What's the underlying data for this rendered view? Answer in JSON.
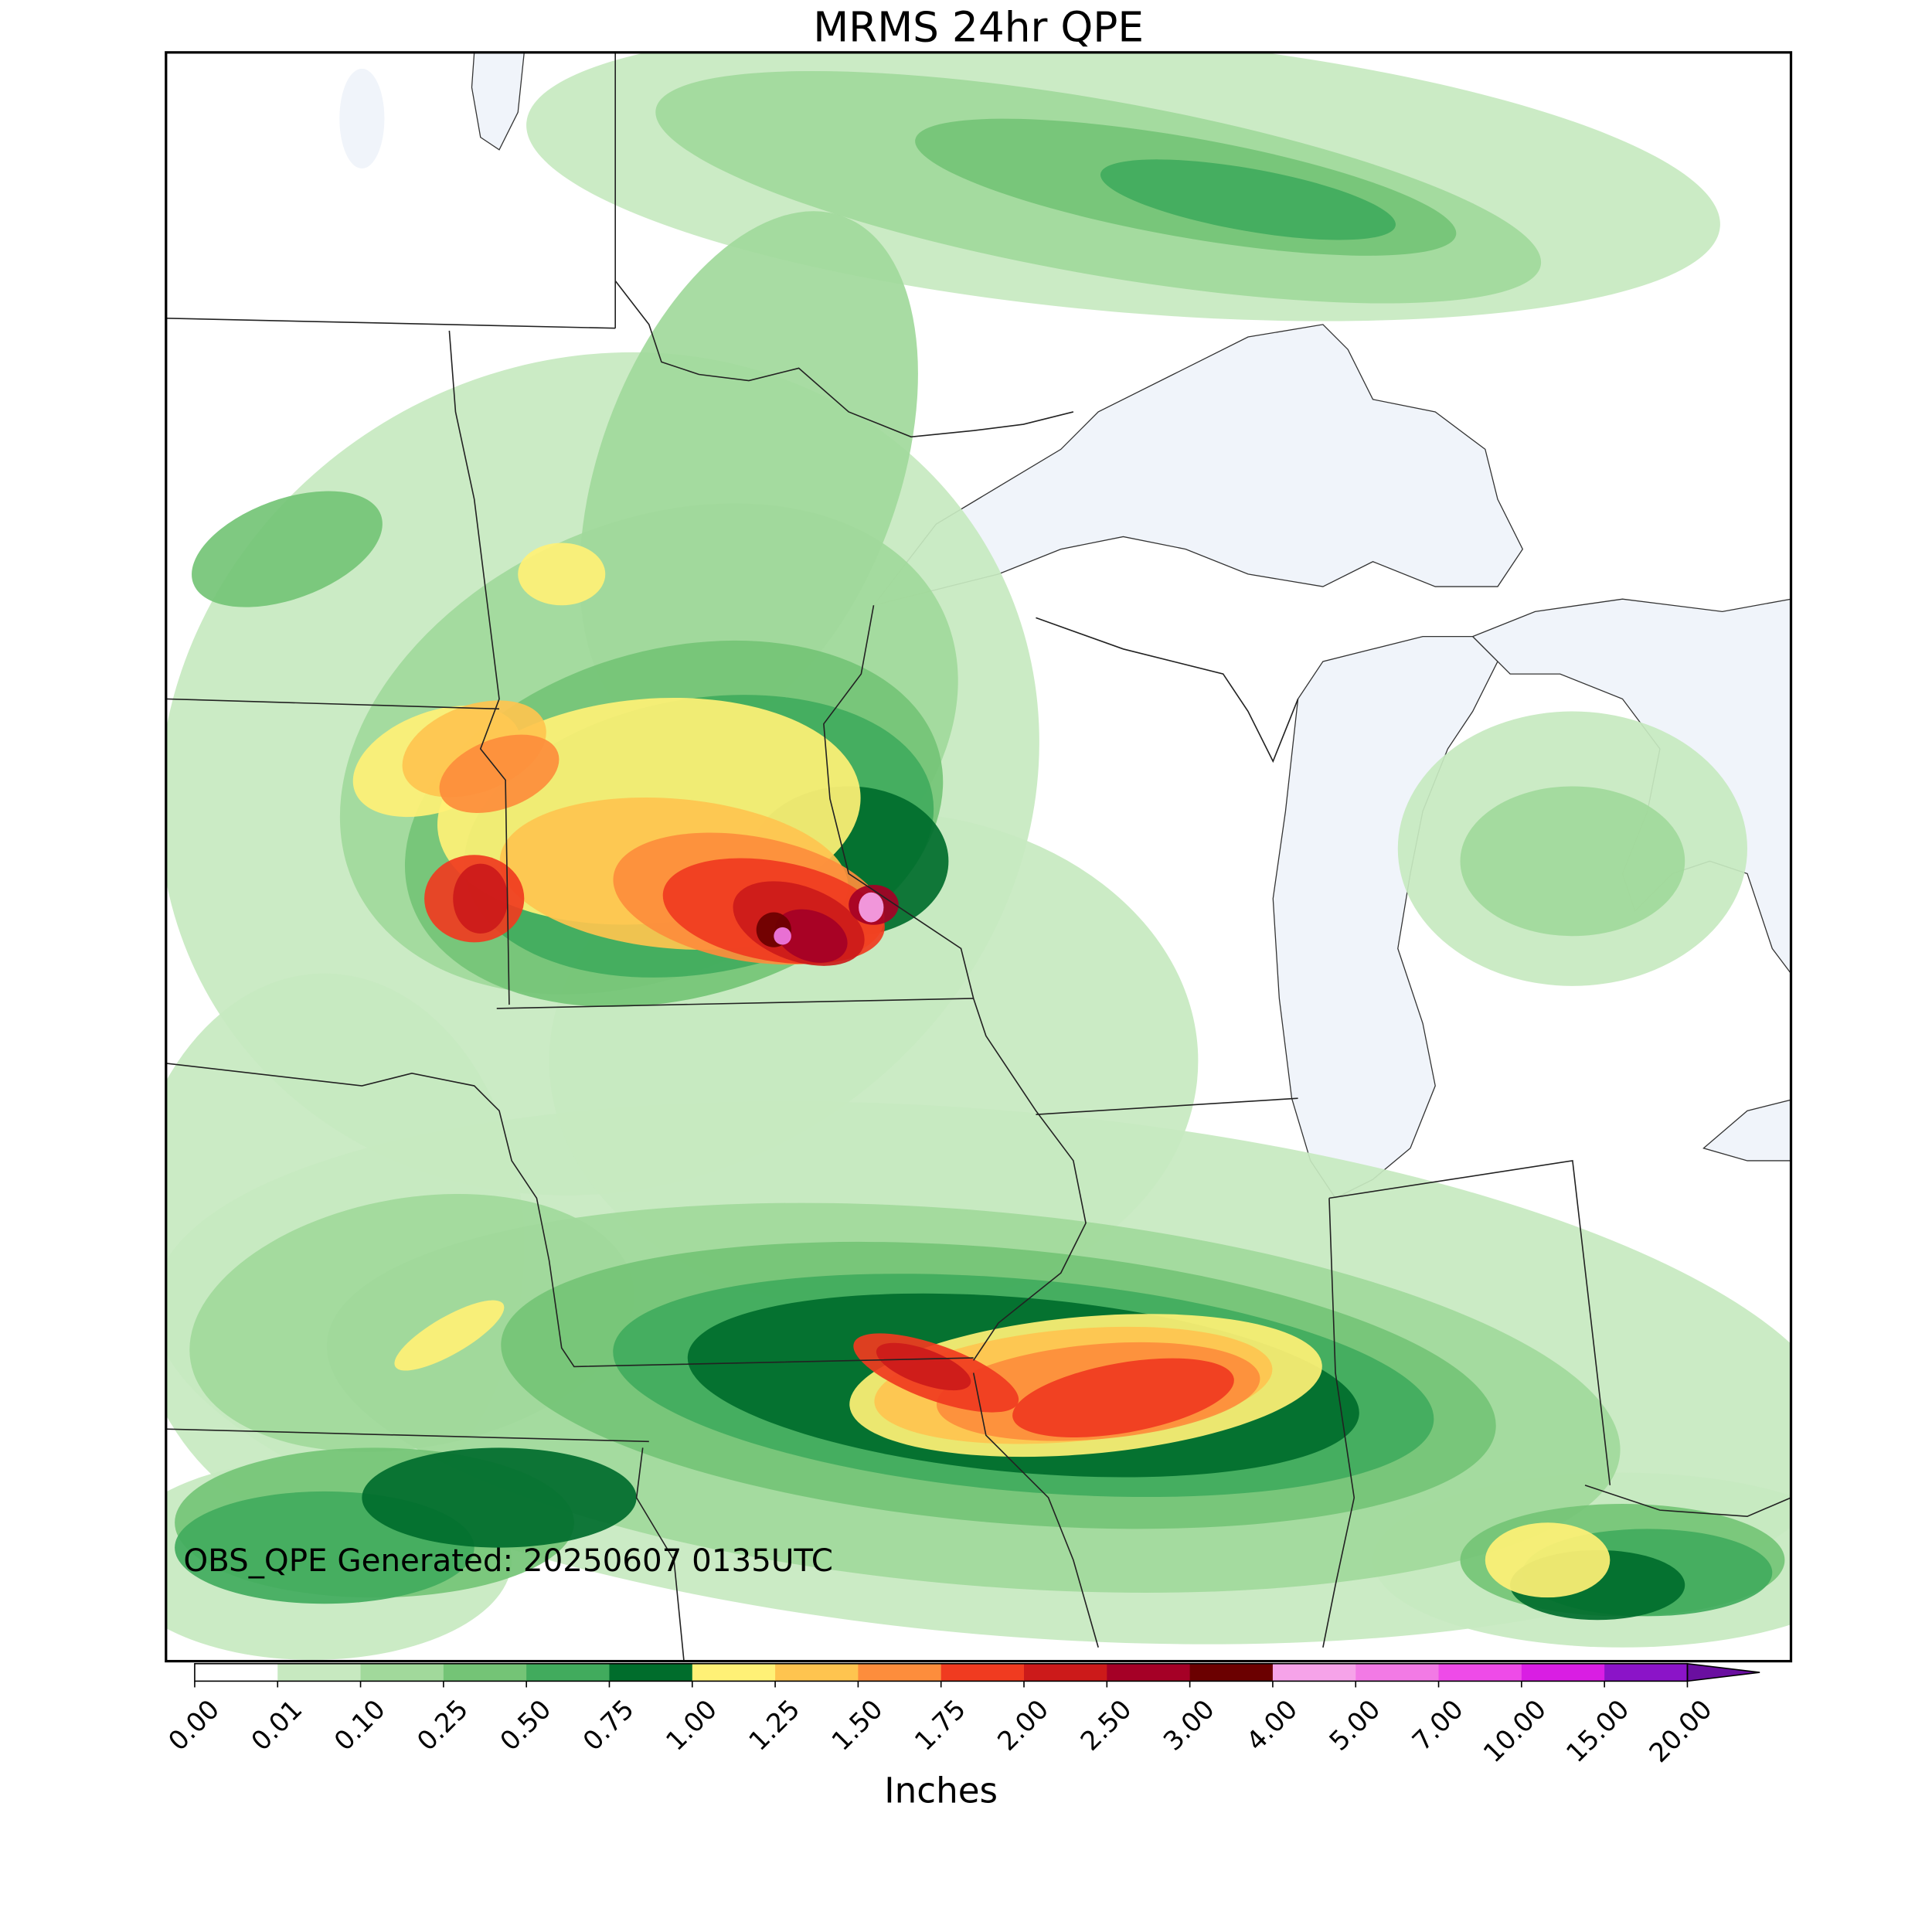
{
  "title": "MRMS 24hr QPE",
  "annotation": "OBS_QPE Generated: 20250607 0135UTC",
  "water_color": "#f0f4fa",
  "colorbar": {
    "label": "Inches",
    "ticks": [
      {
        "value": 0,
        "label": "0.00"
      },
      {
        "value": 0.01,
        "label": "0.01"
      },
      {
        "value": 0.1,
        "label": "0.10"
      },
      {
        "value": 0.25,
        "label": "0.25"
      },
      {
        "value": 0.5,
        "label": "0.50"
      },
      {
        "value": 0.75,
        "label": "0.75"
      },
      {
        "value": 1,
        "label": "1.00"
      },
      {
        "value": 1.25,
        "label": "1.25"
      },
      {
        "value": 1.5,
        "label": "1.50"
      },
      {
        "value": 1.75,
        "label": "1.75"
      },
      {
        "value": 2,
        "label": "2.00"
      },
      {
        "value": 2.5,
        "label": "2.50"
      },
      {
        "value": 3,
        "label": "3.00"
      },
      {
        "value": 4,
        "label": "4.00"
      },
      {
        "value": 5,
        "label": "5.00"
      },
      {
        "value": 7,
        "label": "7.00"
      },
      {
        "value": 10,
        "label": "10.00"
      },
      {
        "value": 15,
        "label": "15.00"
      },
      {
        "value": 20,
        "label": "20.00"
      }
    ],
    "colors": [
      "#ffffff",
      "#c7e9c0",
      "#a1d99b",
      "#74c476",
      "#41ab5d",
      "#006d2c",
      "#fff176",
      "#fec44f",
      "#fd8d3c",
      "#f03b20",
      "#cc1a1a",
      "#a50026",
      "#6b0000",
      "#f6a3e9",
      "#f27ae5",
      "#ee4be8",
      "#d91ee3",
      "#8b14c8"
    ],
    "extend_color": "#6a0fa0"
  }
}
